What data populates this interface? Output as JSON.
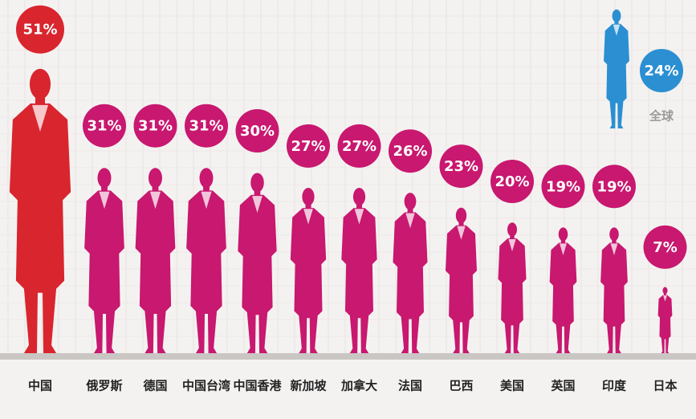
{
  "chart_data": {
    "type": "pictograph",
    "categories": [
      "中国",
      "俄罗斯",
      "德国",
      "中国台湾",
      "中国香港",
      "新加坡",
      "加拿大",
      "法国",
      "巴西",
      "美国",
      "英国",
      "印度",
      "日本"
    ],
    "values": [
      51,
      31,
      31,
      31,
      30,
      27,
      27,
      26,
      23,
      20,
      19,
      19,
      7
    ],
    "value_labels": [
      "51%",
      "31%",
      "31%",
      "31%",
      "30%",
      "27%",
      "27%",
      "26%",
      "23%",
      "20%",
      "19%",
      "19%",
      "7%"
    ],
    "colors": [
      "#d9252e",
      "#c8186f",
      "#c8186f",
      "#c8186f",
      "#c8186f",
      "#c8186f",
      "#c8186f",
      "#c8186f",
      "#c8186f",
      "#c8186f",
      "#c8186f",
      "#c8186f",
      "#c8186f"
    ],
    "global": {
      "name": "全球",
      "value": 24,
      "value_label": "24%",
      "color": "#2b8fd2"
    }
  }
}
